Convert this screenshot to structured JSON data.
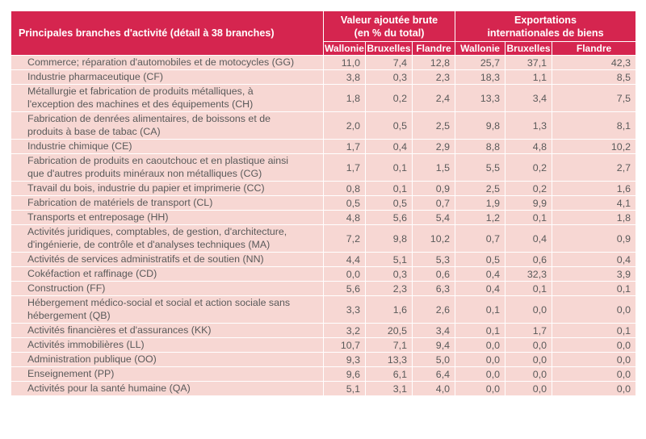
{
  "header": {
    "label_col": "Principales branches d'activité (détail à 38 branches)",
    "group_va": [
      "Valeur ajoutée brute",
      "(en % du total)"
    ],
    "group_exp": [
      "Exportations",
      "internationales de biens"
    ],
    "regions": [
      "Wallonie",
      "Bruxelles",
      "Flandre",
      "Wallonie",
      "Bruxelles",
      "Flandre"
    ]
  },
  "rows": [
    {
      "label": [
        "Commerce; réparation d'automobiles et de motocycles (GG)"
      ],
      "values": [
        "11,0",
        "7,4",
        "12,8",
        "25,7",
        "37,1",
        "42,3"
      ]
    },
    {
      "label": [
        "Industrie pharmaceutique (CF)"
      ],
      "values": [
        "3,8",
        "0,3",
        "2,3",
        "18,3",
        "1,1",
        "8,5"
      ]
    },
    {
      "label": [
        "Métallurgie et fabrication de produits métalliques, à",
        "l'exception des machines et des équipements (CH)"
      ],
      "values": [
        "1,8",
        "0,2",
        "2,4",
        "13,3",
        "3,4",
        "7,5"
      ]
    },
    {
      "label": [
        "Fabrication de denrées alimentaires, de boissons et de",
        "produits à base de tabac (CA)"
      ],
      "values": [
        "2,0",
        "0,5",
        "2,5",
        "9,8",
        "1,3",
        "8,1"
      ]
    },
    {
      "label": [
        "Industrie chimique (CE)"
      ],
      "values": [
        "1,7",
        "0,4",
        "2,9",
        "8,8",
        "4,8",
        "10,2"
      ]
    },
    {
      "label": [
        "Fabrication de produits en caoutchouc et en plastique ainsi",
        "que d'autres produits minéraux non métalliques (CG)"
      ],
      "values": [
        "1,7",
        "0,1",
        "1,5",
        "5,5",
        "0,2",
        "2,7"
      ]
    },
    {
      "label": [
        "Travail du bois, industrie du papier et imprimerie (CC)"
      ],
      "values": [
        "0,8",
        "0,1",
        "0,9",
        "2,5",
        "0,2",
        "1,6"
      ]
    },
    {
      "label": [
        "Fabrication de matériels de transport (CL)"
      ],
      "values": [
        "0,5",
        "0,5",
        "0,7",
        "1,9",
        "9,9",
        "4,1"
      ]
    },
    {
      "label": [
        "Transports et entreposage (HH)"
      ],
      "values": [
        "4,8",
        "5,6",
        "5,4",
        "1,2",
        "0,1",
        "1,8"
      ]
    },
    {
      "label": [
        "Activités juridiques, comptables, de gestion, d'architecture,",
        "d'ingénierie, de contrôle et d'analyses techniques (MA)"
      ],
      "values": [
        "7,2",
        "9,8",
        "10,2",
        "0,7",
        "0,4",
        "0,9"
      ]
    },
    {
      "label": [
        "Activités de services administratifs et de soutien (NN)"
      ],
      "values": [
        "4,4",
        "5,1",
        "5,3",
        "0,5",
        "0,6",
        "0,4"
      ]
    },
    {
      "label": [
        "Cokéfaction et raffinage (CD)"
      ],
      "values": [
        "0,0",
        "0,3",
        "0,6",
        "0,4",
        "32,3",
        "3,9"
      ]
    },
    {
      "label": [
        "Construction (FF)"
      ],
      "values": [
        "5,6",
        "2,3",
        "6,3",
        "0,4",
        "0,1",
        "0,1"
      ]
    },
    {
      "label": [
        "Hébergement médico-social et social et action sociale sans",
        "hébergement (QB)"
      ],
      "values": [
        "3,3",
        "1,6",
        "2,6",
        "0,1",
        "0,0",
        "0,0"
      ]
    },
    {
      "label": [
        "Activités financières et d'assurances (KK)"
      ],
      "values": [
        "3,2",
        "20,5",
        "3,4",
        "0,1",
        "1,7",
        "0,1"
      ]
    },
    {
      "label": [
        "Activités immobilières (LL)"
      ],
      "values": [
        "10,7",
        "7,1",
        "9,4",
        "0,0",
        "0,0",
        "0,0"
      ]
    },
    {
      "label": [
        "Administration publique (OO)"
      ],
      "values": [
        "9,3",
        "13,3",
        "5,0",
        "0,0",
        "0,0",
        "0,0"
      ]
    },
    {
      "label": [
        "Enseignement (PP)"
      ],
      "values": [
        "9,6",
        "6,1",
        "6,4",
        "0,0",
        "0,0",
        "0,0"
      ]
    },
    {
      "label": [
        "Activités pour la santé humaine (QA)"
      ],
      "values": [
        "5,1",
        "3,1",
        "4,0",
        "0,0",
        "0,0",
        "0,0"
      ]
    }
  ]
}
